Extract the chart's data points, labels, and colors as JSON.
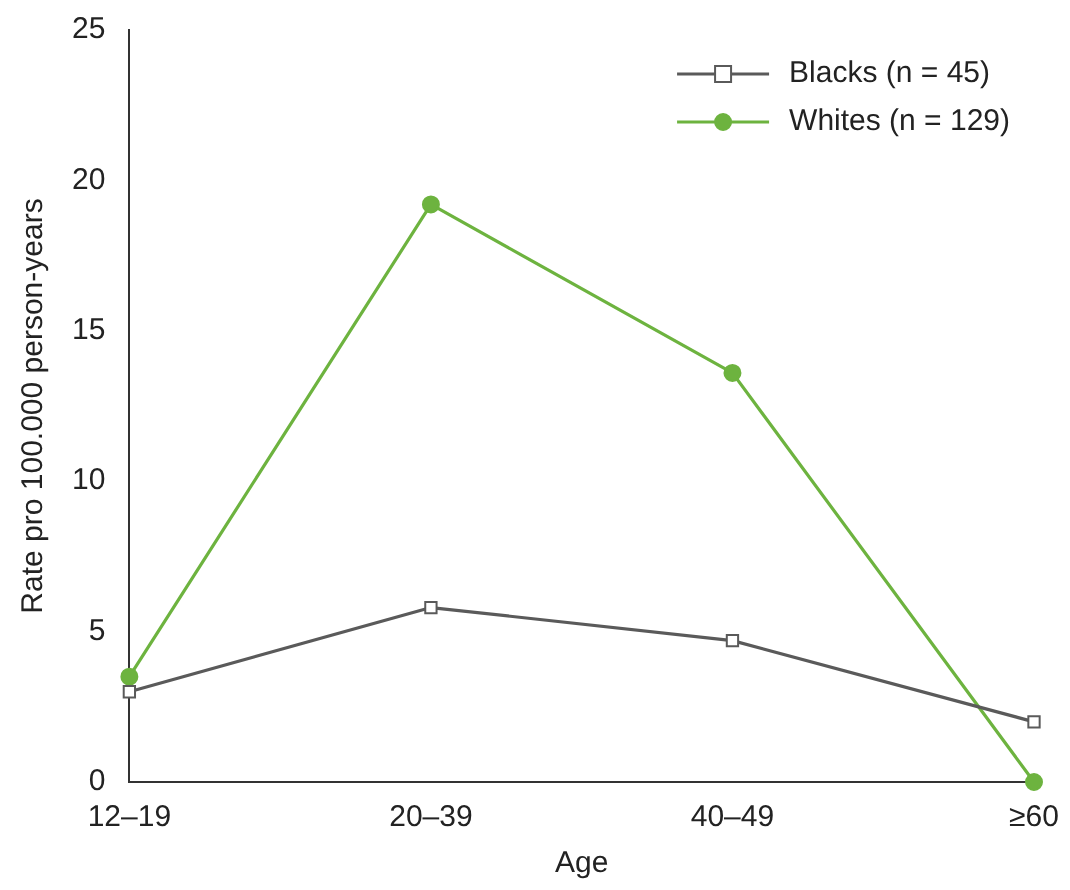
{
  "chart_data": {
    "type": "line",
    "xlabel": "Age",
    "ylabel": "Rate pro 100.000 person-years",
    "categories": [
      "12–19",
      "20–39",
      "40–49",
      "≥60"
    ],
    "series": [
      {
        "name": "Blacks (n = 45)",
        "color": "#5a5a5a",
        "marker": "square",
        "values": [
          3.0,
          5.8,
          4.7,
          2.0
        ]
      },
      {
        "name": "Whites (n = 129)",
        "color": "#6db33f",
        "marker": "circle",
        "values": [
          3.5,
          19.2,
          13.6,
          0
        ]
      }
    ],
    "ylim": [
      0,
      25
    ],
    "yticks": [
      0,
      5,
      10,
      15,
      20,
      25
    ],
    "grid": false,
    "legend": "top right",
    "line_style": "solid"
  }
}
